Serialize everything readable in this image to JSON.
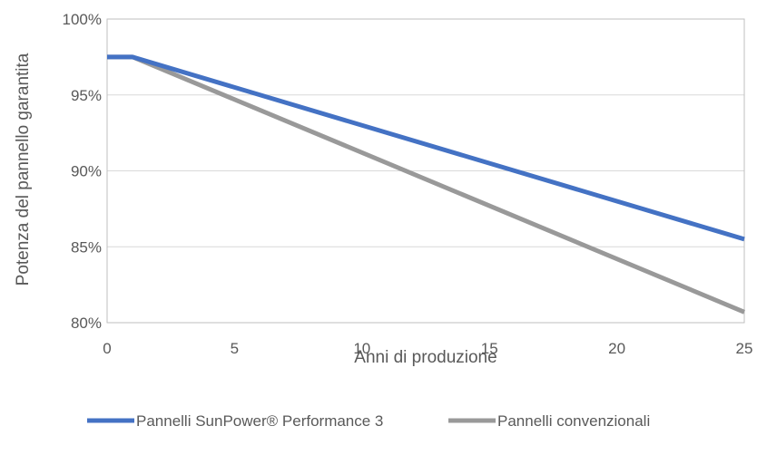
{
  "chart_data": {
    "type": "line",
    "title": "",
    "xlabel": "Anni di produzione",
    "ylabel": "Potenza del pannello garantita",
    "xlim": [
      0,
      25
    ],
    "ylim": [
      80,
      100
    ],
    "x_ticks": [
      0,
      5,
      10,
      15,
      20,
      25
    ],
    "x_tick_labels": [
      "0",
      "5",
      "10",
      "15",
      "20",
      "25"
    ],
    "y_ticks": [
      80,
      85,
      90,
      95,
      100
    ],
    "y_tick_labels": [
      "80%",
      "85%",
      "90%",
      "95%",
      "100%"
    ],
    "grid": "horizontal",
    "legend_position": "bottom",
    "series": [
      {
        "name": "Pannelli SunPower® Performance 3",
        "color": "#4472c4",
        "points": [
          [
            0,
            97.5
          ],
          [
            1,
            97.5
          ],
          [
            25,
            85.5
          ]
        ]
      },
      {
        "name": "Pannelli convenzionali",
        "color": "#999999",
        "points": [
          [
            0,
            97.5
          ],
          [
            1,
            97.5
          ],
          [
            25,
            80.7
          ]
        ]
      }
    ]
  }
}
